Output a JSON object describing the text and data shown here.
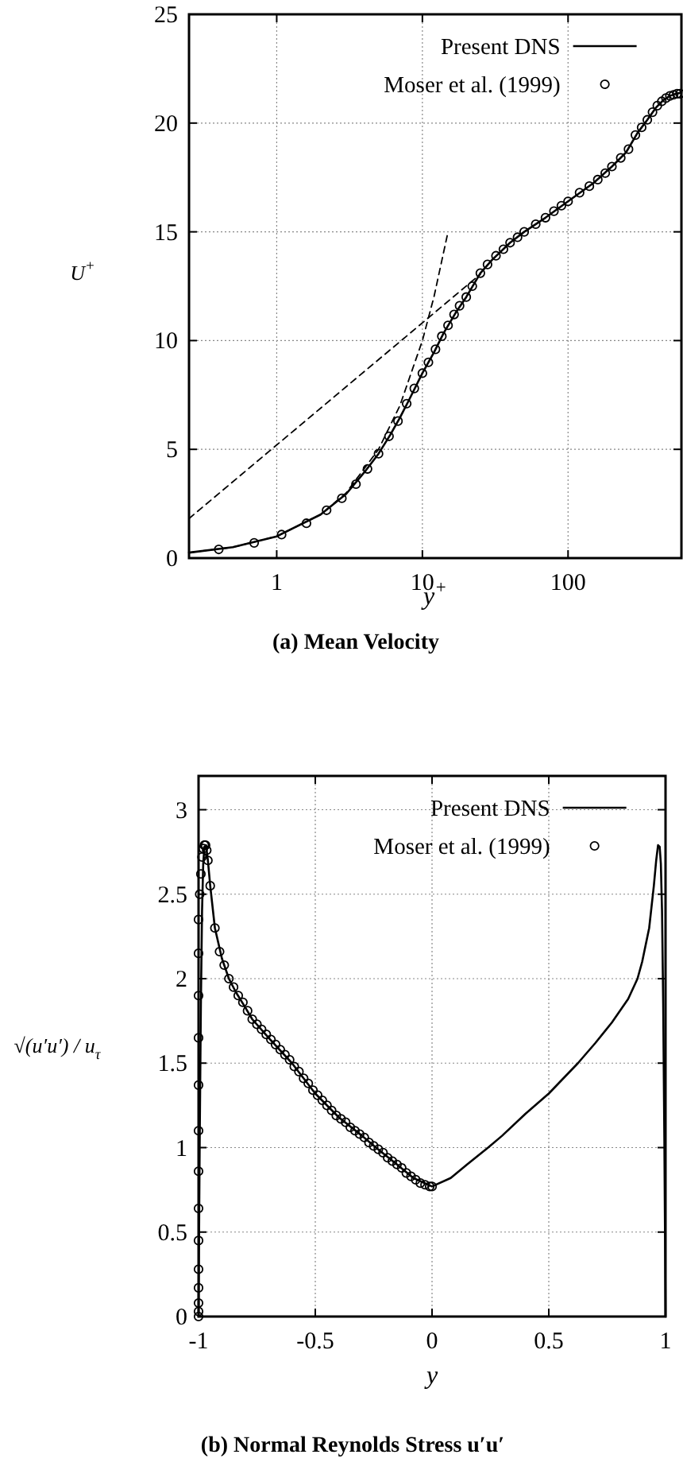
{
  "chart_data": [
    {
      "type": "line",
      "title": "(a) Mean Velocity",
      "xlabel": "y$^{+}$",
      "ylabel": "U$^{+}$",
      "log": "x",
      "xlim": [
        0.25,
        600
      ],
      "xticks": [
        1,
        10,
        100
      ],
      "ylim": [
        0,
        25
      ],
      "yticks": [
        0,
        5,
        10,
        15,
        20,
        25
      ],
      "grid": true,
      "legend": "top",
      "series": [
        {
          "name": "Present DNS",
          "color": "#000000",
          "line_style": "solid",
          "x": [
            0.25,
            0.5,
            1,
            2,
            3,
            4,
            5,
            6,
            7,
            8,
            10,
            12,
            14,
            17,
            20,
            25,
            30,
            40,
            50,
            70,
            100,
            150,
            200,
            250,
            300,
            350,
            400,
            450,
            500,
            550,
            600
          ],
          "values": [
            0.25,
            0.5,
            1.0,
            2.0,
            2.95,
            3.95,
            4.8,
            5.65,
            6.45,
            7.2,
            8.5,
            9.45,
            10.35,
            11.3,
            12.0,
            13.1,
            13.7,
            14.5,
            15.0,
            15.65,
            16.4,
            17.25,
            18.0,
            18.65,
            19.55,
            20.15,
            20.7,
            21.05,
            21.25,
            21.35,
            21.4
          ]
        },
        {
          "name": "Moser et al. (1999)",
          "type": "scatter",
          "marker": "circle",
          "color": "#000000",
          "x": [
            0.4,
            0.7,
            1.08,
            1.6,
            2.2,
            2.8,
            3.5,
            4.2,
            5.0,
            5.9,
            6.8,
            7.8,
            8.8,
            10,
            11,
            12.3,
            13.6,
            15,
            16.5,
            18,
            20,
            22,
            25,
            28,
            32,
            36,
            40,
            45,
            50,
            60,
            70,
            80,
            90,
            100,
            120,
            140,
            160,
            180,
            200,
            230,
            260,
            290,
            320,
            350,
            380,
            410,
            440,
            470,
            500,
            530,
            560,
            587
          ],
          "values": [
            0.4,
            0.7,
            1.08,
            1.6,
            2.2,
            2.75,
            3.4,
            4.1,
            4.8,
            5.6,
            6.3,
            7.1,
            7.8,
            8.5,
            9.0,
            9.6,
            10.2,
            10.7,
            11.2,
            11.6,
            12.0,
            12.5,
            13.1,
            13.5,
            13.9,
            14.2,
            14.5,
            14.75,
            15.0,
            15.35,
            15.65,
            15.95,
            16.2,
            16.4,
            16.8,
            17.1,
            17.4,
            17.7,
            18.0,
            18.4,
            18.8,
            19.45,
            19.8,
            20.15,
            20.5,
            20.8,
            21.0,
            21.15,
            21.25,
            21.3,
            21.35,
            21.35
          ]
        },
        {
          "color": "#000000",
          "line_style": "dashed",
          "x": [
            0.25,
            0.5,
            1,
            2,
            3,
            5,
            7,
            10,
            12,
            15
          ],
          "values": [
            0.25,
            0.5,
            1,
            2,
            3,
            5,
            7,
            10,
            12,
            15
          ]
        },
        {
          "color": "#000000",
          "line_style": "dashed",
          "x": [
            0.25,
            25
          ],
          "values": [
            1.82,
            13.05
          ]
        }
      ]
    },
    {
      "type": "line",
      "title": "(b) Normal Reynolds Stress u′u′",
      "xlabel": "y",
      "ylabel": "√(u′u′) / u$_{τ}$",
      "xlim": [
        -1,
        1
      ],
      "xticks": [
        -1,
        -0.5,
        0,
        0.5,
        1
      ],
      "ylim": [
        0,
        3.2
      ],
      "yticks": [
        0,
        0.5,
        1,
        1.5,
        2,
        2.5,
        3
      ],
      "grid": true,
      "legend": "top",
      "series": [
        {
          "name": "Present DNS",
          "color": "#000000",
          "line_style": "solid",
          "x": [
            -1,
            -0.998,
            -0.995,
            -0.99,
            -0.985,
            -0.98,
            -0.975,
            -0.968,
            -0.96,
            -0.95,
            -0.93,
            -0.9,
            -0.87,
            -0.84,
            -0.8,
            -0.77,
            -0.7,
            -0.6,
            -0.5,
            -0.4,
            -0.3,
            -0.24,
            -0.15,
            -0.08,
            0,
            0.08,
            0.15,
            0.24,
            0.3,
            0.4,
            0.5,
            0.625,
            0.7,
            0.77,
            0.84,
            0.88,
            0.9,
            0.93,
            0.95,
            0.96,
            0.968,
            0.975,
            0.98,
            0.985,
            0.99,
            0.995,
            0.998,
            1
          ],
          "values": [
            0,
            0.45,
            1.05,
            1.85,
            2.4,
            2.68,
            2.78,
            2.79,
            2.7,
            2.55,
            2.3,
            2.12,
            2.0,
            1.92,
            1.83,
            1.76,
            1.65,
            1.5,
            1.32,
            1.18,
            1.07,
            1.0,
            0.9,
            0.82,
            0.77,
            0.82,
            0.9,
            1.0,
            1.07,
            1.2,
            1.32,
            1.5,
            1.62,
            1.74,
            1.88,
            2.0,
            2.1,
            2.3,
            2.55,
            2.7,
            2.79,
            2.78,
            2.68,
            2.4,
            1.85,
            1.05,
            0.45,
            0
          ]
        },
        {
          "name": "Moser et al. (1999)",
          "type": "scatter",
          "marker": "circle",
          "color": "#000000",
          "x": [
            -1,
            -1,
            -1,
            -1,
            -1,
            -1,
            -1,
            -1,
            -1,
            -1,
            -1,
            -1,
            -1,
            -1,
            -0.995,
            -0.99,
            -0.985,
            -0.98,
            -0.975,
            -0.97,
            -0.965,
            -0.96,
            -0.95,
            -0.93,
            -0.91,
            -0.89,
            -0.87,
            -0.85,
            -0.83,
            -0.81,
            -0.79,
            -0.77,
            -0.75,
            -0.73,
            -0.71,
            -0.69,
            -0.67,
            -0.65,
            -0.63,
            -0.61,
            -0.59,
            -0.57,
            -0.55,
            -0.53,
            -0.51,
            -0.49,
            -0.47,
            -0.45,
            -0.43,
            -0.41,
            -0.39,
            -0.37,
            -0.35,
            -0.33,
            -0.31,
            -0.29,
            -0.27,
            -0.25,
            -0.23,
            -0.21,
            -0.19,
            -0.17,
            -0.15,
            -0.13,
            -0.11,
            -0.09,
            -0.07,
            -0.05,
            -0.03,
            -0.01,
            0
          ],
          "values": [
            0,
            0.03,
            0.08,
            0.17,
            0.28,
            0.45,
            0.64,
            0.86,
            1.1,
            1.37,
            1.65,
            1.9,
            2.15,
            2.35,
            2.5,
            2.62,
            2.72,
            2.77,
            2.79,
            2.79,
            2.76,
            2.7,
            2.55,
            2.3,
            2.16,
            2.08,
            2.0,
            1.95,
            1.9,
            1.86,
            1.81,
            1.76,
            1.73,
            1.7,
            1.67,
            1.64,
            1.61,
            1.58,
            1.55,
            1.52,
            1.48,
            1.45,
            1.41,
            1.38,
            1.34,
            1.31,
            1.28,
            1.25,
            1.22,
            1.19,
            1.17,
            1.15,
            1.12,
            1.1,
            1.08,
            1.06,
            1.03,
            1.01,
            0.99,
            0.97,
            0.94,
            0.92,
            0.9,
            0.88,
            0.85,
            0.83,
            0.81,
            0.79,
            0.78,
            0.77,
            0.77
          ]
        }
      ]
    }
  ]
}
